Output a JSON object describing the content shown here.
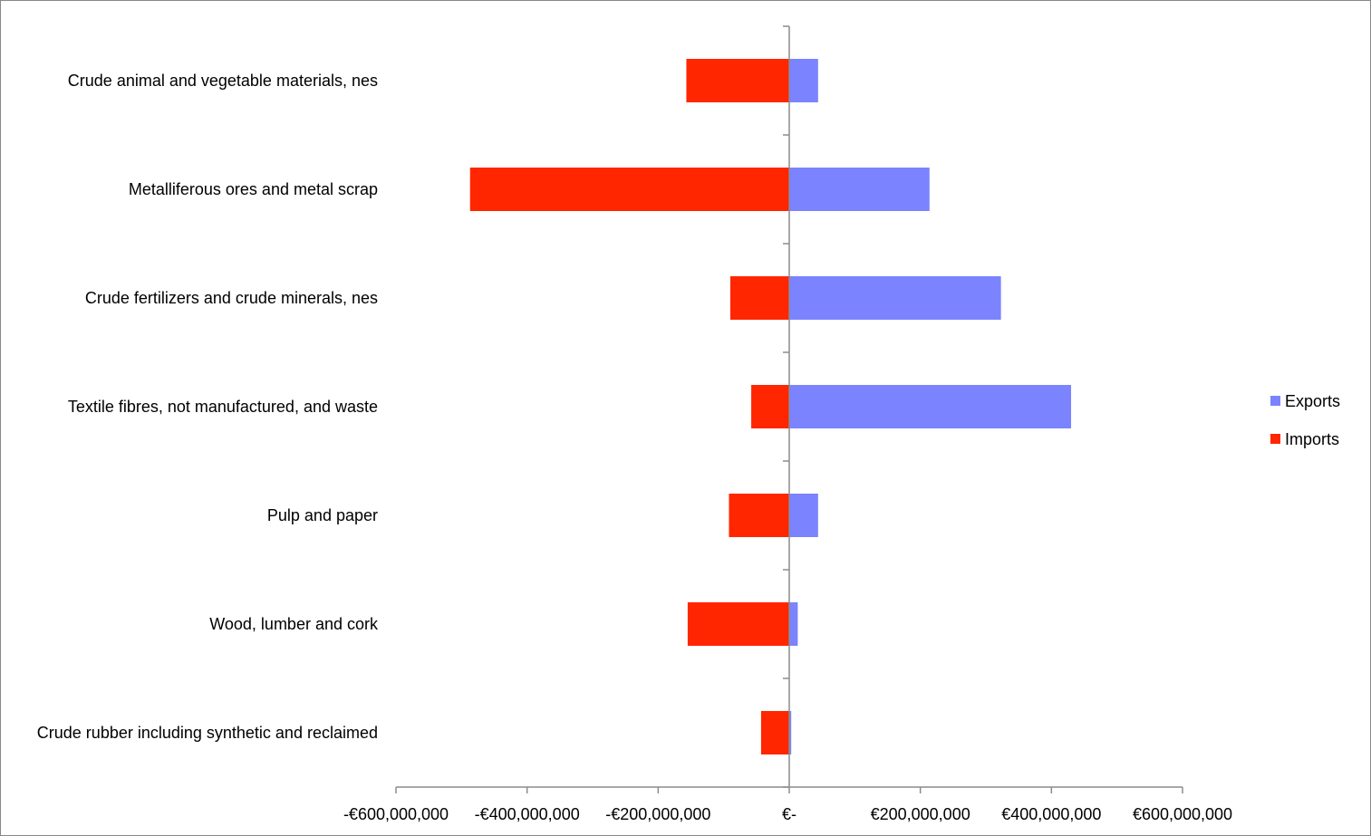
{
  "chart_data": {
    "type": "bar",
    "orientation": "horizontal",
    "title": "",
    "xlabel": "",
    "ylabel": "",
    "categories": [
      "Crude animal and vegetable materials, nes",
      "Metalliferous ores and metal scrap",
      "Crude fertilizers and crude minerals, nes",
      "Textile fibres, not manufactured, and waste",
      "Pulp and paper",
      "Wood, lumber and cork",
      "Crude rubber including synthetic and reclaimed"
    ],
    "series": [
      {
        "name": "Exports",
        "color": "#7b83fe",
        "values": [
          44000000,
          214000000,
          323000000,
          430000000,
          44000000,
          13000000,
          3000000
        ]
      },
      {
        "name": "Imports",
        "color": "#ff2600",
        "values": [
          -157000000,
          -487000000,
          -90000000,
          -58000000,
          -92000000,
          -155000000,
          -43000000
        ]
      }
    ],
    "xlim": [
      -600000000,
      600000000
    ],
    "x_ticks": [
      -600000000,
      -400000000,
      -200000000,
      0,
      200000000,
      400000000,
      600000000
    ],
    "x_tick_labels": [
      "-€600,000,000",
      "-€400,000,000",
      "-€200,000,000",
      "€-",
      "€200,000,000",
      "€400,000,000",
      "€600,000,000"
    ],
    "grid": false,
    "legend": {
      "position": "right",
      "entries": [
        "Exports",
        "Imports"
      ]
    }
  }
}
